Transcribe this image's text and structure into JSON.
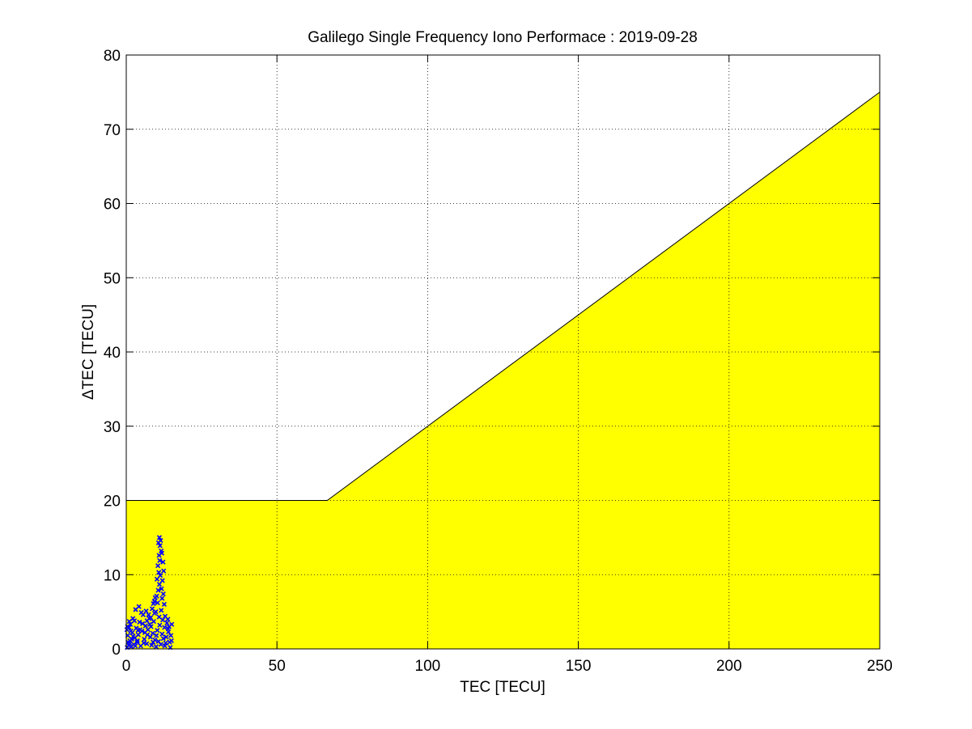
{
  "chart_data": {
    "type": "scatter",
    "title": "Galilego Single Frequency Iono Performace : 2019-09-28",
    "xlabel": "TEC [TECU]",
    "ylabel": "ΔTEC [TECU]",
    "xlim": [
      0,
      250
    ],
    "ylim": [
      0,
      80
    ],
    "xticks": [
      0,
      50,
      100,
      150,
      200,
      250
    ],
    "yticks": [
      0,
      10,
      20,
      30,
      40,
      50,
      60,
      70,
      80
    ],
    "grid": true,
    "legend": "none",
    "colors": {
      "threshold_fill": "#ffff00",
      "points": "#0000ff",
      "axes": "#000000"
    },
    "threshold_region": {
      "boundary": [
        [
          0,
          20
        ],
        [
          66.7,
          20
        ],
        [
          250,
          75
        ]
      ],
      "fill": "below"
    },
    "series": [
      {
        "marker": "x",
        "points": [
          [
            0.3,
            0.2
          ],
          [
            0.8,
            0.5
          ],
          [
            1.2,
            1.1
          ],
          [
            1.6,
            0.3
          ],
          [
            2.0,
            2.2
          ],
          [
            0.5,
            1.8
          ],
          [
            0.9,
            2.9
          ],
          [
            1.4,
            3.3
          ],
          [
            0.2,
            2.6
          ],
          [
            1.1,
            0.8
          ],
          [
            2.5,
            0.6
          ],
          [
            2.9,
            1.5
          ],
          [
            3.3,
            2.8
          ],
          [
            3.6,
            0.9
          ],
          [
            4.0,
            1.9
          ],
          [
            4.4,
            3.6
          ],
          [
            4.8,
            0.4
          ],
          [
            5.2,
            2.4
          ],
          [
            5.6,
            4.6
          ],
          [
            6.0,
            1.3
          ],
          [
            6.4,
            3.1
          ],
          [
            6.8,
            0.7
          ],
          [
            7.2,
            2.6
          ],
          [
            7.6,
            4.1
          ],
          [
            8.0,
            1.6
          ],
          [
            8.4,
            0.5
          ],
          [
            8.8,
            2.1
          ],
          [
            9.1,
            3.7
          ],
          [
            9.5,
            1.2
          ],
          [
            9.9,
            0.3
          ],
          [
            10.3,
            2.5
          ],
          [
            10.7,
            1.0
          ],
          [
            11.1,
            3.2
          ],
          [
            11.5,
            0.6
          ],
          [
            11.9,
            2.0
          ],
          [
            12.3,
            1.4
          ],
          [
            12.7,
            2.9
          ],
          [
            13.1,
            0.8
          ],
          [
            13.5,
            3.5
          ],
          [
            14.0,
            2.3
          ],
          [
            14.4,
            0.9
          ],
          [
            14.8,
            1.8
          ],
          [
            15.1,
            3.3
          ],
          [
            13.8,
            4.0
          ],
          [
            12.9,
            4.4
          ],
          [
            11.6,
            5.2
          ],
          [
            10.4,
            6.2
          ],
          [
            9.8,
            5.0
          ],
          [
            3.1,
            5.3
          ],
          [
            4.2,
            5.7
          ],
          [
            5.0,
            4.9
          ],
          [
            2.2,
            4.1
          ],
          [
            1.0,
            3.7
          ],
          [
            6.6,
            5.1
          ],
          [
            7.4,
            4.6
          ],
          [
            8.6,
            5.4
          ],
          [
            9.3,
            6.4
          ],
          [
            10.1,
            7.1
          ],
          [
            10.6,
            7.9
          ],
          [
            11.0,
            8.7
          ],
          [
            10.2,
            9.4
          ],
          [
            10.8,
            10.3
          ],
          [
            11.3,
            9.9
          ],
          [
            10.5,
            11.2
          ],
          [
            11.1,
            11.9
          ],
          [
            10.9,
            12.6
          ],
          [
            11.6,
            13.2
          ],
          [
            11.2,
            13.9
          ],
          [
            10.7,
            14.3
          ],
          [
            11.4,
            14.6
          ],
          [
            11.0,
            15.0
          ],
          [
            11.8,
            12.9
          ],
          [
            12.2,
            11.7
          ],
          [
            12.4,
            10.5
          ],
          [
            12.0,
            9.2
          ],
          [
            11.7,
            8.1
          ],
          [
            12.3,
            7.4
          ],
          [
            11.9,
            6.8
          ],
          [
            12.6,
            6.0
          ],
          [
            9.6,
            6.9
          ],
          [
            9.0,
            6.1
          ],
          [
            8.2,
            3.0
          ],
          [
            7.0,
            1.9
          ],
          [
            5.4,
            3.4
          ],
          [
            3.9,
            2.5
          ],
          [
            2.7,
            3.8
          ],
          [
            1.8,
            1.3
          ],
          [
            0.6,
            0.9
          ],
          [
            0.4,
            3.0
          ],
          [
            1.5,
            2.4
          ],
          [
            2.3,
            1.7
          ],
          [
            3.0,
            0.4
          ],
          [
            3.7,
            1.1
          ],
          [
            4.6,
            2.6
          ],
          [
            5.8,
            0.8
          ],
          [
            6.2,
            2.2
          ],
          [
            7.8,
            3.3
          ],
          [
            8.9,
            0.9
          ],
          [
            10.0,
            1.8
          ],
          [
            12.8,
            0.4
          ],
          [
            13.3,
            1.6
          ],
          [
            14.2,
            3.0
          ],
          [
            15.0,
            1.1
          ],
          [
            14.6,
            0.2
          ],
          [
            13.9,
            2.7
          ],
          [
            12.1,
            3.9
          ],
          [
            10.9,
            4.3
          ],
          [
            9.4,
            4.8
          ],
          [
            8.1,
            4.2
          ],
          [
            6.9,
            3.8
          ]
        ]
      }
    ]
  }
}
